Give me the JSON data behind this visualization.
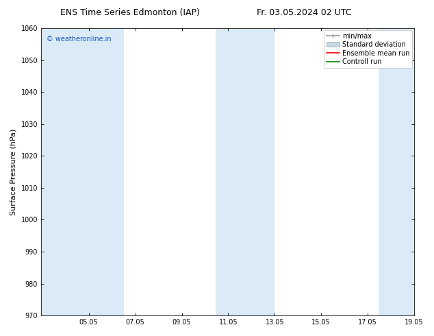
{
  "title_left": "ENS Time Series Edmonton (IAP)",
  "title_right": "Fr. 03.05.2024 02 UTC",
  "ylabel": "Surface Pressure (hPa)",
  "ylim": [
    970,
    1060
  ],
  "yticks": [
    970,
    980,
    990,
    1000,
    1010,
    1020,
    1030,
    1040,
    1050,
    1060
  ],
  "xlim_start": 3.0,
  "xlim_end": 19.05,
  "xticks": [
    3.0,
    5.05,
    7.05,
    9.05,
    11.05,
    13.05,
    15.05,
    17.05,
    19.05
  ],
  "xticklabels": [
    "",
    "05.05",
    "07.05",
    "09.05",
    "11.05",
    "13.05",
    "15.05",
    "17.05",
    "19.05"
  ],
  "shaded_bands": [
    {
      "x_start": 3.0,
      "x_end": 4.5,
      "color": "#daeaf6"
    },
    {
      "x_start": 4.5,
      "x_end": 6.55,
      "color": "#daeaf6"
    },
    {
      "x_start": 10.5,
      "x_end": 11.8,
      "color": "#daeaf6"
    },
    {
      "x_start": 11.8,
      "x_end": 13.05,
      "color": "#daeaf6"
    },
    {
      "x_start": 17.5,
      "x_end": 19.05,
      "color": "#daeaf6"
    }
  ],
  "watermark": "© weatheronline.in",
  "watermark_color": "#1155cc",
  "background_color": "#ffffff",
  "legend_labels": [
    "min/max",
    "Standard deviation",
    "Ensemble mean run",
    "Controll run"
  ],
  "legend_minmax_color": "#999999",
  "legend_std_color": "#c5dce8",
  "legend_ens_color": "#ff0000",
  "legend_ctrl_color": "#008000",
  "title_fontsize": 9,
  "axis_label_fontsize": 8,
  "tick_fontsize": 7,
  "legend_fontsize": 7
}
